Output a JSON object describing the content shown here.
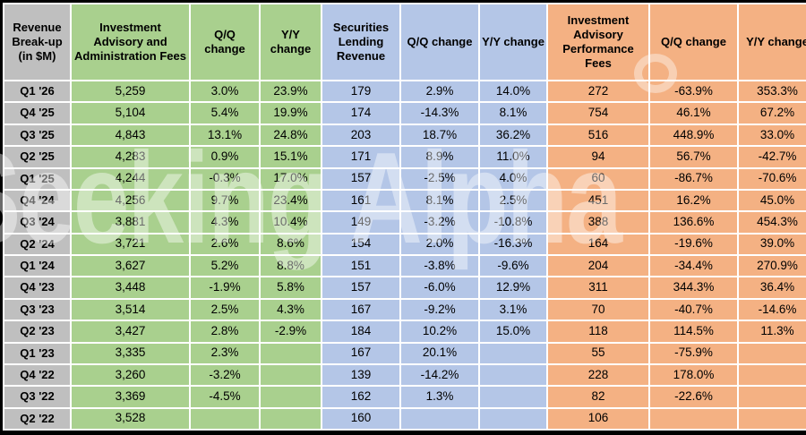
{
  "watermark": {
    "text": "Seeking Alpha"
  },
  "colors": {
    "gray": "#BFBFBF",
    "green": "#A9D08E",
    "blue": "#B4C6E7",
    "orange": "#F4B183",
    "gridline": "#FFFFFF",
    "border": "#000000"
  },
  "header": {
    "corner": "Revenue Break-up (in $M)",
    "sections": [
      {
        "key": "green",
        "title": "Investment Advisory and Administration Fees",
        "qq": "Q/Q change",
        "yy": "Y/Y change"
      },
      {
        "key": "blue",
        "title": "Securities Lending Revenue",
        "qq": "Q/Q change",
        "yy": "Y/Y change"
      },
      {
        "key": "orange",
        "title": "Investment Advisory Performance Fees",
        "qq": "Q/Q change",
        "yy": "Y/Y change"
      }
    ]
  },
  "chart_data": {
    "type": "table",
    "title": "Revenue Break-up (in $M)",
    "columns": [
      "Revenue Break-up (in $M)",
      "Investment Advisory and Administration Fees",
      "Q/Q change",
      "Y/Y change",
      "Securities Lending Revenue",
      "Q/Q change",
      "Y/Y change",
      "Investment Advisory Performance Fees",
      "Q/Q change",
      "Y/Y change"
    ],
    "rows": [
      [
        "Q1 '26",
        "5,259",
        "3.0%",
        "23.9%",
        "179",
        "2.9%",
        "14.0%",
        "272",
        "-63.9%",
        "353.3%"
      ],
      [
        "Q4 '25",
        "5,104",
        "5.4%",
        "19.9%",
        "174",
        "-14.3%",
        "8.1%",
        "754",
        "46.1%",
        "67.2%"
      ],
      [
        "Q3 '25",
        "4,843",
        "13.1%",
        "24.8%",
        "203",
        "18.7%",
        "36.2%",
        "516",
        "448.9%",
        "33.0%"
      ],
      [
        "Q2 '25",
        "4,283",
        "0.9%",
        "15.1%",
        "171",
        "8.9%",
        "11.0%",
        "94",
        "56.7%",
        "-42.7%"
      ],
      [
        "Q1 '25",
        "4,244",
        "-0.3%",
        "17.0%",
        "157",
        "-2.5%",
        "4.0%",
        "60",
        "-86.7%",
        "-70.6%"
      ],
      [
        "Q4 '24",
        "4,256",
        "9.7%",
        "23.4%",
        "161",
        "8.1%",
        "2.5%",
        "451",
        "16.2%",
        "45.0%"
      ],
      [
        "Q3 '24",
        "3,881",
        "4.3%",
        "10.4%",
        "149",
        "-3.2%",
        "-10.8%",
        "388",
        "136.6%",
        "454.3%"
      ],
      [
        "Q2 '24",
        "3,721",
        "2.6%",
        "8.6%",
        "154",
        "2.0%",
        "-16.3%",
        "164",
        "-19.6%",
        "39.0%"
      ],
      [
        "Q1 '24",
        "3,627",
        "5.2%",
        "8.8%",
        "151",
        "-3.8%",
        "-9.6%",
        "204",
        "-34.4%",
        "270.9%"
      ],
      [
        "Q4 '23",
        "3,448",
        "-1.9%",
        "5.8%",
        "157",
        "-6.0%",
        "12.9%",
        "311",
        "344.3%",
        "36.4%"
      ],
      [
        "Q3 '23",
        "3,514",
        "2.5%",
        "4.3%",
        "167",
        "-9.2%",
        "3.1%",
        "70",
        "-40.7%",
        "-14.6%"
      ],
      [
        "Q2 '23",
        "3,427",
        "2.8%",
        "-2.9%",
        "184",
        "10.2%",
        "15.0%",
        "118",
        "114.5%",
        "11.3%"
      ],
      [
        "Q1 '23",
        "3,335",
        "2.3%",
        "",
        "167",
        "20.1%",
        "",
        "55",
        "-75.9%",
        ""
      ],
      [
        "Q4 '22",
        "3,260",
        "-3.2%",
        "",
        "139",
        "-14.2%",
        "",
        "228",
        "178.0%",
        ""
      ],
      [
        "Q3 '22",
        "3,369",
        "-4.5%",
        "",
        "162",
        "1.3%",
        "",
        "82",
        "-22.6%",
        ""
      ],
      [
        "Q2 '22",
        "3,528",
        "",
        "",
        "160",
        "",
        "",
        "106",
        "",
        ""
      ]
    ]
  }
}
